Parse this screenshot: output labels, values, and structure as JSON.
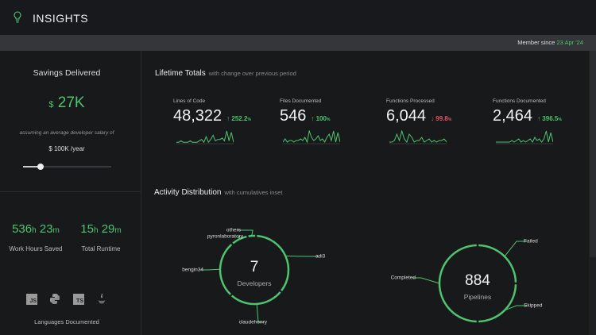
{
  "header": {
    "title": "INSIGHTS",
    "icon": "lightbulb-icon"
  },
  "member": {
    "label": "Member since",
    "date": "23 Apr '24"
  },
  "savings": {
    "title": "Savings Delivered",
    "currency": "$",
    "amount": "27K",
    "note": "assuming an average developer salary of",
    "salary": "$ 100K /year",
    "slider_fraction": 0.2
  },
  "time": {
    "work": {
      "h": "536",
      "m": "23",
      "label": "Work Hours Saved"
    },
    "runtime": {
      "h": "15",
      "m": "29",
      "label": "Total Runtime"
    },
    "h_unit": "h",
    "m_unit": "m"
  },
  "languages": {
    "label": "Languages Documented",
    "items": [
      "JS",
      "python",
      "TS",
      "java"
    ]
  },
  "lifetime": {
    "title": "Lifetime Totals",
    "subtitle": "with change over previous period",
    "stats": [
      {
        "label": "Lines of Code",
        "value": "48,322",
        "change": "252.2",
        "dir": "up",
        "spark": [
          1,
          1,
          2,
          1,
          1,
          1,
          2,
          1,
          1,
          1,
          2,
          3,
          1,
          5,
          1,
          3,
          6,
          2,
          3,
          3,
          4,
          2,
          9,
          2,
          8,
          1
        ]
      },
      {
        "label": "Files Documented",
        "value": "546",
        "change": "100",
        "dir": "up",
        "spark": [
          1,
          3,
          1,
          2,
          2,
          1,
          2,
          2,
          3,
          2,
          4,
          1,
          8,
          4,
          2,
          3,
          5,
          2,
          3,
          1,
          4,
          6,
          2,
          8,
          1,
          7,
          1
        ]
      },
      {
        "label": "Functions Processed",
        "value": "6,044",
        "change": "99.8",
        "dir": "down",
        "spark": [
          1,
          1,
          2,
          6,
          2,
          8,
          3,
          1,
          6,
          4,
          1,
          2,
          2,
          4,
          1,
          2,
          3,
          1,
          2,
          1,
          2,
          2,
          3,
          1
        ]
      },
      {
        "label": "Functions Documented",
        "value": "2,464",
        "change": "396.5",
        "dir": "up",
        "spark": [
          1,
          1,
          1,
          1,
          1,
          1,
          1,
          2,
          1,
          2,
          3,
          1,
          2,
          1,
          2,
          3,
          1,
          4,
          2,
          3,
          1,
          3,
          8,
          1,
          7,
          1
        ]
      }
    ],
    "pct": "%"
  },
  "activity": {
    "title": "Activity Distribution",
    "subtitle": "with cumulatives inset",
    "developers": {
      "count": "7",
      "label": "Developers",
      "segments": [
        {
          "name": "adi3",
          "pct": 35
        },
        {
          "name": "claudehenry",
          "pct": 26
        },
        {
          "name": "bengin34",
          "pct": 27
        },
        {
          "name": "pyronlaboratory",
          "pct": 8
        },
        {
          "name": "others",
          "pct": 4
        }
      ]
    },
    "pipelines": {
      "count": "884",
      "label": "Pipelines",
      "segments": [
        {
          "name": "Failed",
          "pct": 25
        },
        {
          "name": "Skipped",
          "pct": 25
        },
        {
          "name": "Completed",
          "pct": 50
        }
      ]
    }
  },
  "colors": {
    "accent": "#4ec46f",
    "negative": "#e0566a"
  }
}
